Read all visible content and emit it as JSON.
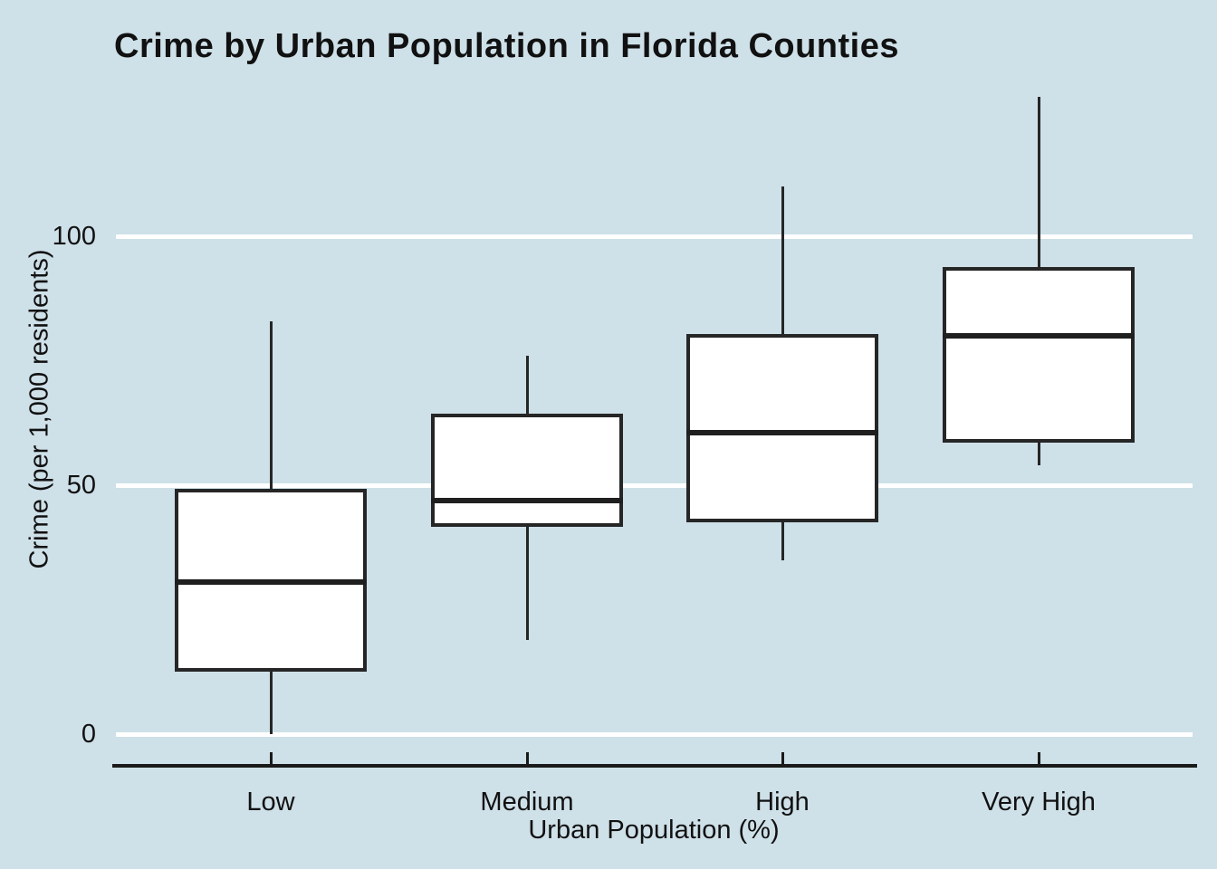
{
  "chart_data": {
    "type": "boxplot",
    "title": "Crime by Urban Population in Florida Counties",
    "xlabel": "Urban Population (%)",
    "ylabel": "Crime (per 1,000 residents)",
    "categories": [
      "Low",
      "Medium",
      "High",
      "Very High"
    ],
    "yticks": [
      0,
      50,
      100
    ],
    "ylim": [
      -6,
      132
    ],
    "grid": "horizontal gridlines at y ticks, white, on",
    "legend_position": "none",
    "orientation": "vertical",
    "series": [
      {
        "category": "Low",
        "min": 0,
        "q1": 13,
        "median": 30.5,
        "q3": 49,
        "max": 83,
        "outliers": []
      },
      {
        "category": "Medium",
        "min": 19,
        "q1": 42,
        "median": 47,
        "q3": 64,
        "max": 76,
        "outliers": []
      },
      {
        "category": "High",
        "min": 35,
        "q1": 43,
        "median": 60.5,
        "q3": 80,
        "max": 110,
        "outliers": []
      },
      {
        "category": "Very High",
        "min": 54,
        "q1": 59,
        "median": 80,
        "q3": 93.5,
        "max": 128,
        "outliers": []
      }
    ],
    "colors": {
      "background": "#cee0e8",
      "gridline": "#ffffff",
      "box_fill": "#ffffff",
      "box_border": "#262626",
      "median_line": "#1f1f1f",
      "whisker": "#262626",
      "axis_line": "#1a1a1a",
      "text": "#111111"
    }
  }
}
